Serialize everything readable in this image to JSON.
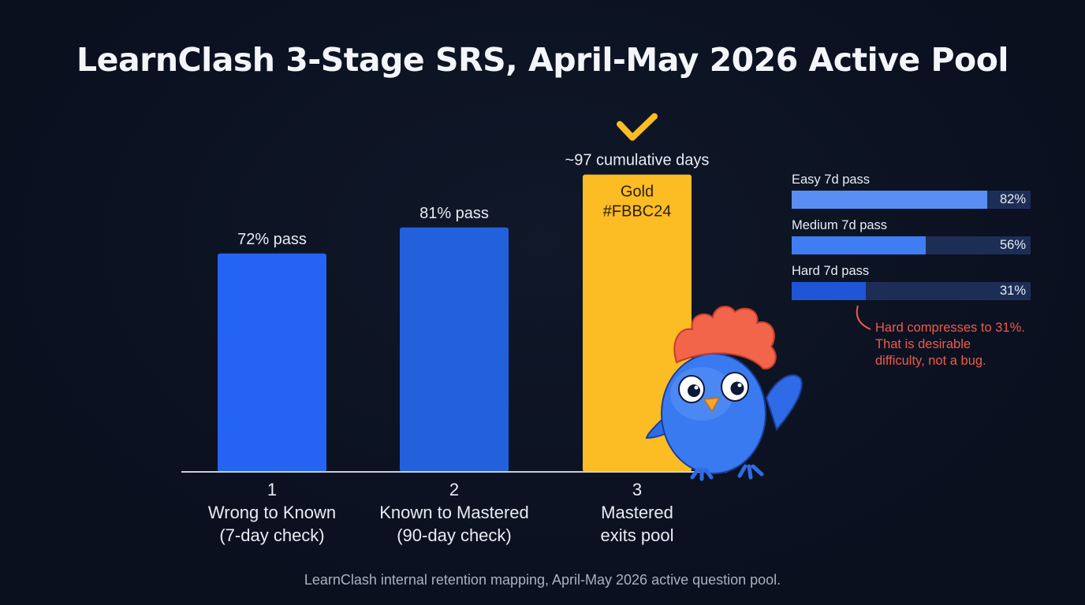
{
  "title": "LearnClash 3-Stage SRS, April-May 2026 Active Pool",
  "chart_data": {
    "type": "bar",
    "categories": [
      "1",
      "2",
      "3"
    ],
    "category_labels": [
      [
        "1",
        "Wrong to Known",
        "(7-day check)"
      ],
      [
        "2",
        "Known to Mastered",
        "(90-day check)"
      ],
      [
        "3",
        "Mastered",
        "exits pool"
      ]
    ],
    "values": [
      72,
      81,
      97
    ],
    "value_labels": [
      "72% pass",
      "81% pass",
      "~97 cumulative days"
    ],
    "inside_labels": [
      "",
      "",
      "Gold\n#FBBC24"
    ],
    "colors": [
      "#2563f2",
      "#2360dc",
      "#fbbc24"
    ],
    "checkmark_on": 2,
    "legend": "none",
    "grid": false
  },
  "side_bars": [
    {
      "label": "Easy 7d pass",
      "value": 82,
      "value_text": "82%",
      "color": "#5b8ef5"
    },
    {
      "label": "Medium 7d pass",
      "value": 56,
      "value_text": "56%",
      "color": "#3f7ef2"
    },
    {
      "label": "Hard 7d pass",
      "value": 31,
      "value_text": "31%",
      "color": "#1f55d6"
    }
  ],
  "annotation": {
    "lines": [
      "Hard compresses to 31%.",
      "That is desirable",
      "difficulty, not a bug."
    ],
    "color": "#ef5a4a"
  },
  "mascot": {
    "icon": "blue-bird-mascot-icon"
  },
  "footnote": "LearnClash internal retention mapping, April-May 2026 active question pool."
}
